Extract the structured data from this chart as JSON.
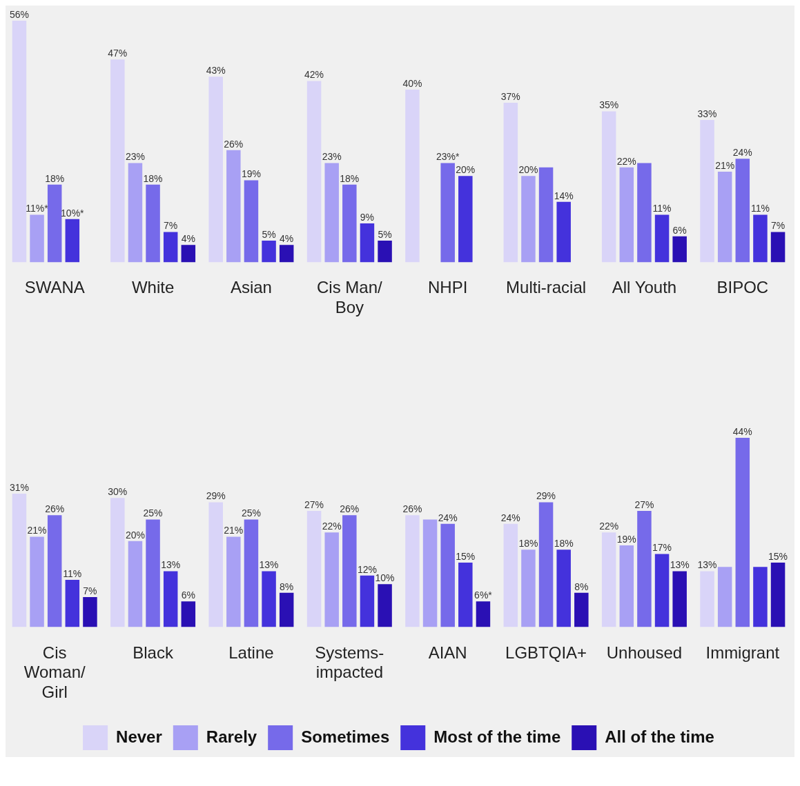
{
  "chart_data": [
    {
      "type": "bar",
      "categories": [
        "SWANA",
        "White",
        "Asian",
        "Cis Man/Boy",
        "NHPI",
        "Multi-racial",
        "All Youth",
        "BIPOC"
      ],
      "legend": false,
      "series": [
        {
          "color": "#d9d4f8",
          "values": [
            56,
            47,
            43,
            42,
            40,
            37,
            35,
            33
          ],
          "value_labels": [
            "56%",
            "47%",
            "43%",
            "42%",
            "40%",
            "37%",
            "35%",
            "33%"
          ]
        },
        {
          "color": "#a8a0f4",
          "values": [
            11,
            23,
            26,
            23,
            null,
            20,
            22,
            21
          ],
          "value_labels": [
            "11%*",
            "23%",
            "26%",
            "23%",
            null,
            "20%",
            "22%",
            "21%"
          ]
        },
        {
          "color": "#766aea",
          "values": [
            18,
            18,
            19,
            18,
            23,
            22,
            23,
            24
          ],
          "value_labels": [
            "18%",
            "18%",
            "19%",
            "18%",
            "23%*",
            null,
            null,
            "24%"
          ]
        },
        {
          "color": "#4432dc",
          "values": [
            10,
            7,
            5,
            9,
            20,
            14,
            11,
            11
          ],
          "value_labels": [
            "10%*",
            "7%",
            "5%",
            "9%",
            "20%",
            "14%",
            "11%",
            "11%"
          ]
        },
        {
          "color": "#2a10b4",
          "values": [
            null,
            4,
            4,
            5,
            null,
            null,
            6,
            7
          ],
          "value_labels": [
            null,
            "4%",
            "4%",
            "5%",
            null,
            null,
            "6%",
            "7%"
          ]
        }
      ]
    },
    {
      "type": "bar",
      "categories": [
        "Cis Woman/Girl",
        "Black",
        "Latine",
        "Systems-impacted",
        "AIAN",
        "LGBTQIA+",
        "Unhoused",
        "Immigrant"
      ],
      "legend": "bottom",
      "series": [
        {
          "name": "Never",
          "color": "#d9d4f8",
          "values": [
            31,
            30,
            29,
            27,
            26,
            24,
            22,
            13
          ],
          "value_labels": [
            "31%",
            "30%",
            "29%",
            "27%",
            "26%",
            "24%",
            "22%",
            "13%"
          ]
        },
        {
          "name": "Rarely",
          "color": "#a8a0f4",
          "values": [
            21,
            20,
            21,
            22,
            25,
            18,
            19,
            14
          ],
          "value_labels": [
            "21%",
            "20%",
            "21%",
            "22%",
            null,
            "18%",
            "19%",
            null
          ]
        },
        {
          "name": "Sometimes",
          "color": "#766aea",
          "values": [
            26,
            25,
            25,
            26,
            24,
            29,
            27,
            44
          ],
          "value_labels": [
            "26%",
            "25%",
            "25%",
            "26%",
            "24%",
            "29%",
            "27%",
            "44%"
          ]
        },
        {
          "name": "Most of the time",
          "color": "#4432dc",
          "values": [
            11,
            13,
            13,
            12,
            15,
            18,
            17,
            14
          ],
          "value_labels": [
            "11%",
            "13%",
            "13%",
            "12%",
            "15%",
            "18%",
            "17%",
            null
          ]
        },
        {
          "name": "All of the time",
          "color": "#2a10b4",
          "values": [
            7,
            6,
            8,
            10,
            6,
            8,
            13,
            15
          ],
          "value_labels": [
            "7%",
            "6%",
            "8%",
            "10%",
            "6%*",
            "8%",
            "13%",
            "15%"
          ]
        }
      ]
    }
  ]
}
